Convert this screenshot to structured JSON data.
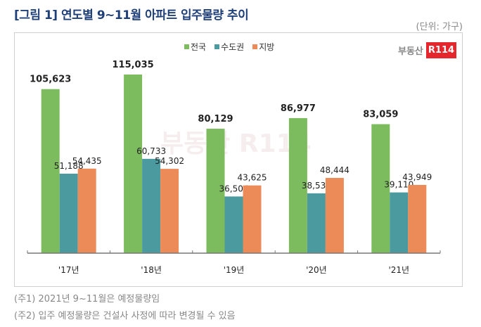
{
  "title": "[그림 1] 연도별 9~11월 아파트 입주물량 추이",
  "unit": "(단위: 가구)",
  "logo": {
    "text": "부동산",
    "badge": "R114"
  },
  "notes": [
    "(주1) 2021년 9~11월은 예정물량임",
    "(주2) 입주 예정물량은 건설사 사정에 따라 변경될 수 있음"
  ],
  "chart_data": {
    "type": "bar",
    "categories": [
      "'17년",
      "'18년",
      "'19년",
      "'20년",
      "'21년"
    ],
    "series": [
      {
        "name": "전국",
        "color": "#7dbb5f",
        "values": [
          105623,
          115035,
          80129,
          86977,
          83059
        ]
      },
      {
        "name": "수도권",
        "color": "#4a9aa0",
        "values": [
          51188,
          60733,
          36504,
          38533,
          39110
        ]
      },
      {
        "name": "지방",
        "color": "#ec8a58",
        "values": [
          54435,
          54302,
          43625,
          48444,
          43949
        ]
      }
    ],
    "ylim": [
      0,
      120000
    ],
    "legend": "top",
    "grid": false
  }
}
